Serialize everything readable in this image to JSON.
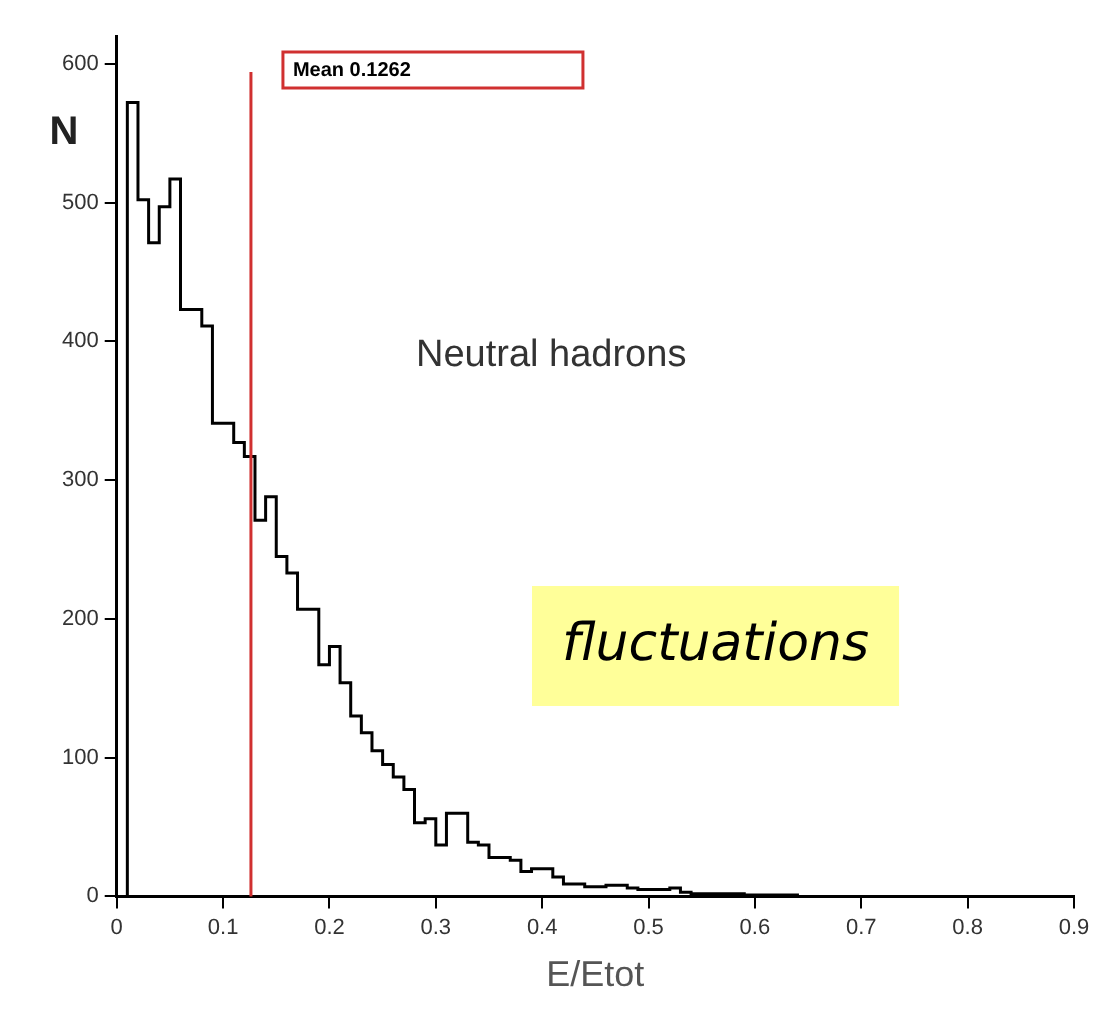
{
  "chart_data": {
    "type": "histogram",
    "xlabel": "E/Etot",
    "ylabel": "N",
    "bins": [
      0.01,
      0.02,
      0.03,
      0.04,
      0.05,
      0.06,
      0.07,
      0.08,
      0.09,
      0.1,
      0.11,
      0.12,
      0.13,
      0.14,
      0.15,
      0.16,
      0.17,
      0.18,
      0.19,
      0.2,
      0.21,
      0.22,
      0.23,
      0.24,
      0.25,
      0.26,
      0.27,
      0.28,
      0.29,
      0.3,
      0.31,
      0.32,
      0.33,
      0.34,
      0.35,
      0.36,
      0.37,
      0.38,
      0.39,
      0.4,
      0.41,
      0.42,
      0.43,
      0.44,
      0.45,
      0.46,
      0.47,
      0.48,
      0.49,
      0.5,
      0.51,
      0.52,
      0.53,
      0.54,
      0.55,
      0.56,
      0.57,
      0.58,
      0.59,
      0.6,
      0.61,
      0.62,
      0.63,
      0.64,
      0.65
    ],
    "values": [
      572,
      502,
      471,
      497,
      517,
      423,
      423,
      411,
      341,
      341,
      327,
      317,
      271,
      288,
      245,
      233,
      207,
      207,
      167,
      180,
      154,
      130,
      118,
      105,
      95,
      86,
      77,
      53,
      56,
      37,
      60,
      60,
      39,
      37,
      28,
      28,
      26,
      18,
      20,
      20,
      14,
      9,
      9,
      7,
      7,
      8,
      8,
      6,
      5,
      5,
      5,
      6,
      3,
      2,
      2,
      2,
      2,
      2,
      1,
      1,
      1,
      1,
      1,
      0
    ],
    "color": "#000000",
    "xlim": [
      0,
      0.9
    ],
    "xticks": [
      0,
      0.1,
      0.2,
      0.3,
      0.4,
      0.5,
      0.6,
      0.7,
      0.8,
      0.9
    ],
    "ylim": [
      0,
      620
    ],
    "yticks": [
      0,
      100,
      200,
      300,
      400,
      500,
      600
    ],
    "ref_lines": [
      {
        "axis": "x",
        "value": 0.1262,
        "label": "Mean 0.1262",
        "color": "#d03030"
      }
    ],
    "annotations": [
      "Neutral hadrons",
      "fluctuations"
    ]
  }
}
